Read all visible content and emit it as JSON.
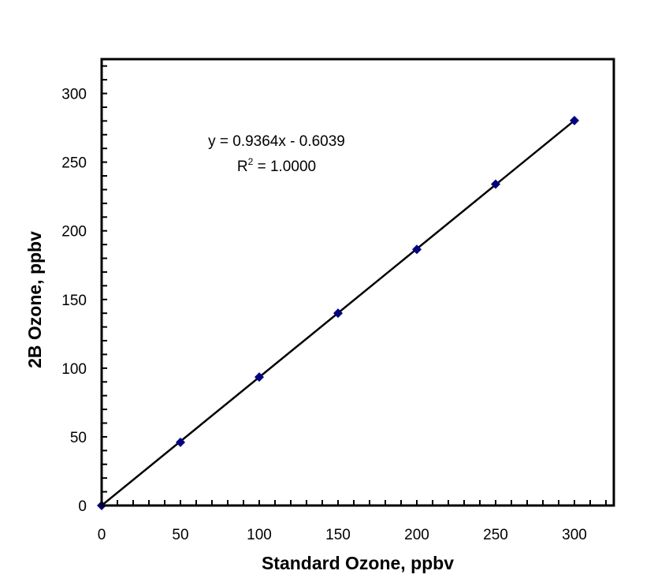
{
  "chart_data": {
    "type": "scatter",
    "title": "",
    "xlabel": "Standard Ozone, ppbv",
    "ylabel": "2B Ozone, ppbv",
    "xlim": [
      0,
      325
    ],
    "ylim": [
      0,
      325
    ],
    "xticks": [
      0,
      50,
      100,
      150,
      200,
      250,
      300
    ],
    "yticks": [
      0,
      50,
      100,
      150,
      200,
      250,
      300
    ],
    "xtick_labels": [
      "0",
      "50",
      "100",
      "150",
      "200",
      "250",
      "300"
    ],
    "ytick_labels": [
      "0",
      "50",
      "100",
      "150",
      "200",
      "250",
      "300"
    ],
    "minor_tick_step": 10,
    "grid": false,
    "legend": "none",
    "series": [
      {
        "marker": "diamond",
        "color": "#000080",
        "x": [
          0,
          50,
          100,
          150,
          200,
          250,
          300
        ],
        "y": [
          0,
          46,
          93.5,
          140,
          186.5,
          234,
          280.3
        ]
      }
    ],
    "trendline": {
      "slope": 0.9364,
      "intercept": -0.6039,
      "x_range": [
        0,
        300
      ],
      "color": "#000000",
      "equation_label": "y = 0.9364x - 0.6039",
      "r2_label_prefix": "R",
      "r2_label_sup": "2",
      "r2_label_suffix": " = 1.0000"
    }
  }
}
